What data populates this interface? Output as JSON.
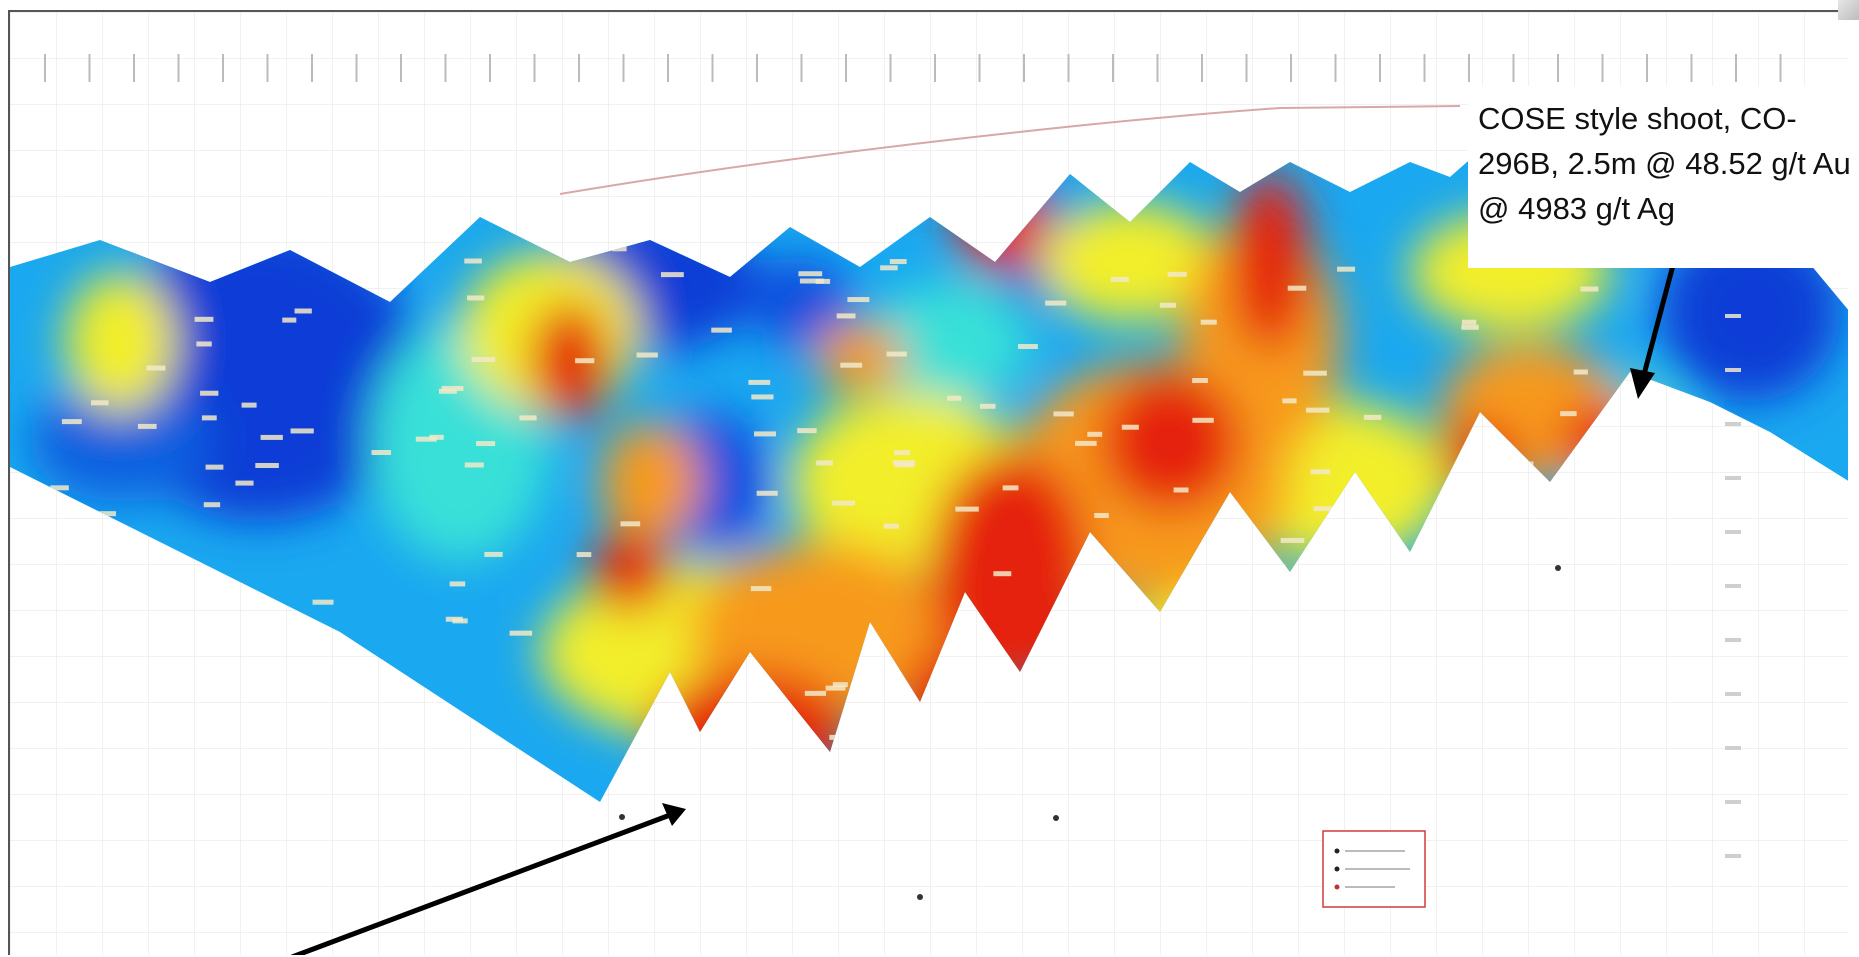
{
  "annotation": {
    "callout_text": "COSE style shoot, CO-296B, 2.5m @ 48.52 g/t Au @ 4983 g/t Ag"
  },
  "colors": {
    "grade_low": "#0a3dd6",
    "grade_low_mid": "#1aa8f0",
    "grade_mid": "#38e0d8",
    "grade_mid_high": "#f2ee2a",
    "grade_high": "#f79a1a",
    "grade_max": "#e5210c",
    "arrow": "#000000",
    "surface_trace": "#d8a7a7",
    "legend_box_border": "#d23b3b"
  },
  "icons": [
    "arrow-pointer-icon",
    "legend-box-icon"
  ]
}
